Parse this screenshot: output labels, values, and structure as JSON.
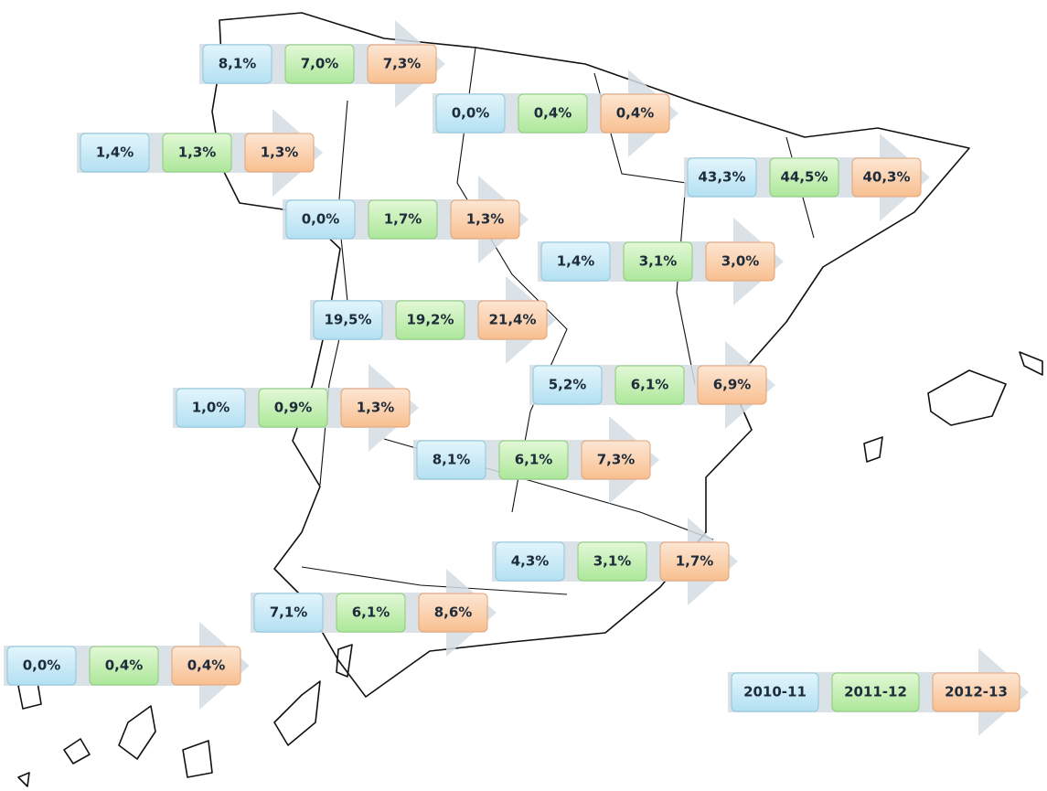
{
  "groups": [
    {
      "values": [
        "8,1%",
        "7,0%",
        "7,3%"
      ]
    },
    {
      "values": [
        "0,0%",
        "0,4%",
        "0,4%"
      ]
    },
    {
      "values": [
        "1,4%",
        "1,3%",
        "1,3%"
      ]
    },
    {
      "values": [
        "43,3%",
        "44,5%",
        "40,3%"
      ]
    },
    {
      "values": [
        "0,0%",
        "1,7%",
        "1,3%"
      ]
    },
    {
      "values": [
        "1,4%",
        "3,1%",
        "3,0%"
      ]
    },
    {
      "values": [
        "19,5%",
        "19,2%",
        "21,4%"
      ]
    },
    {
      "values": [
        "1,0%",
        "0,9%",
        "1,3%"
      ]
    },
    {
      "values": [
        "5,2%",
        "6,1%",
        "6,9%"
      ]
    },
    {
      "values": [
        "8,1%",
        "6,1%",
        "7,3%"
      ]
    },
    {
      "values": [
        "4,3%",
        "3,1%",
        "1,7%"
      ]
    },
    {
      "values": [
        "7,1%",
        "6,1%",
        "8,6%"
      ]
    },
    {
      "values": [
        "0,0%",
        "0,4%",
        "0,4%"
      ]
    }
  ],
  "legend": [
    "2010-11",
    "2011-12",
    "2012-13"
  ]
}
